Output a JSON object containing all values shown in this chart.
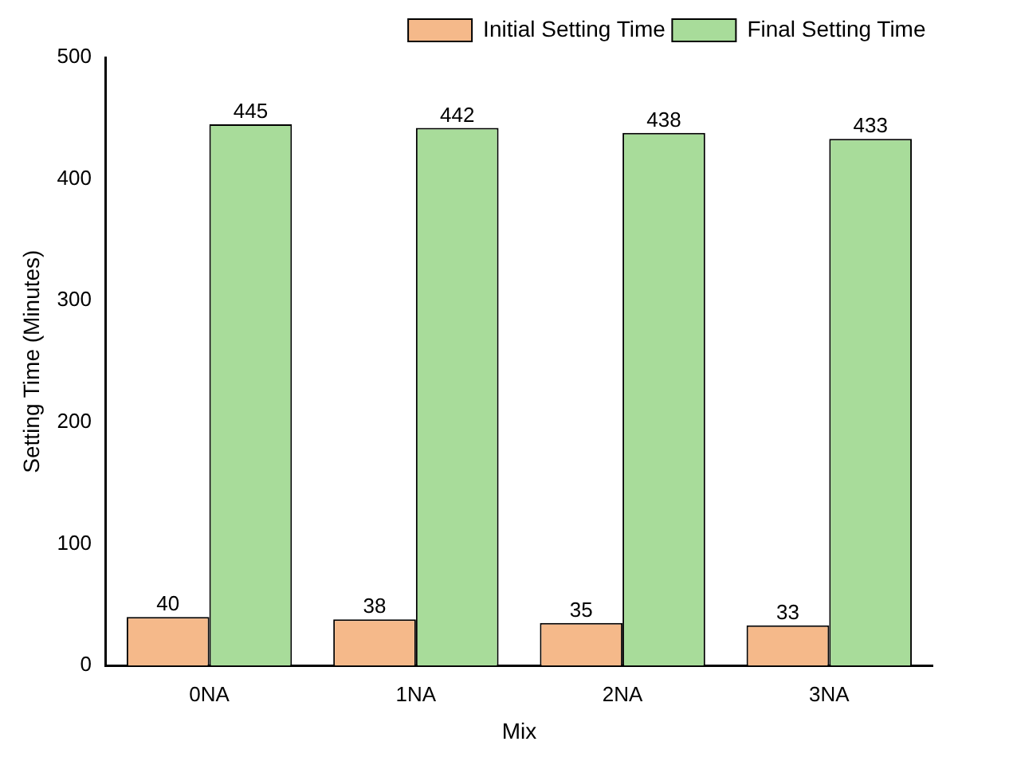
{
  "chart_data": {
    "type": "bar",
    "xlabel": "Mix",
    "ylabel": "Setting Time (Minutes)",
    "categories": [
      "0NA",
      "1NA",
      "2NA",
      "3NA"
    ],
    "series": [
      {
        "name": "Initial Setting Time",
        "color": "#f5b98a",
        "values": [
          40,
          38,
          35,
          33
        ]
      },
      {
        "name": "Final Setting Time",
        "color": "#a8dc9a",
        "values": [
          445,
          442,
          438,
          433
        ]
      }
    ],
    "ylim": [
      0,
      500
    ],
    "yticks": [
      0,
      100,
      200,
      300,
      400,
      500
    ],
    "data_labels": true,
    "legend": "top right",
    "grid": false
  }
}
